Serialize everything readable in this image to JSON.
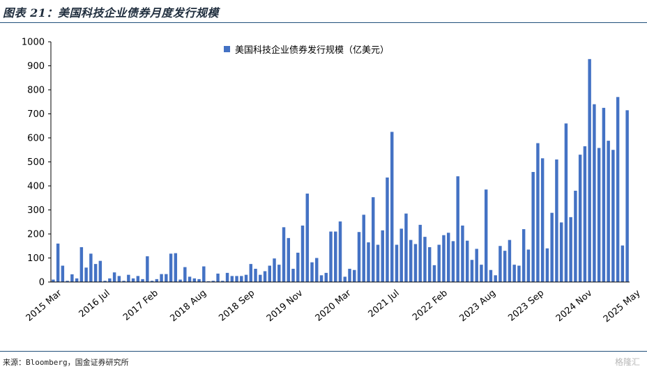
{
  "header": {
    "title": "图表 21：美国科技企业债券月度发行规模"
  },
  "footer": {
    "source": "来源：Bloomberg，国金证券研究所",
    "watermark": "格隆汇"
  },
  "colors": {
    "bar": "#4472c4",
    "rule": "#1f4e79",
    "axis": "#000000"
  },
  "chart_data": {
    "type": "bar",
    "series": [
      {
        "name": "美国科技企业债券发行规模（亿美元）",
        "values": [
          10,
          160,
          68,
          5,
          32,
          15,
          145,
          60,
          118,
          75,
          88,
          5,
          15,
          40,
          25,
          5,
          30,
          15,
          25,
          12,
          107,
          5,
          12,
          33,
          33,
          118,
          120,
          10,
          62,
          22,
          15,
          12,
          65,
          3,
          5,
          35,
          5,
          38,
          25,
          25,
          25,
          30,
          75,
          55,
          30,
          45,
          68,
          98,
          72,
          228,
          183,
          55,
          122,
          235,
          368,
          82,
          100,
          28,
          38,
          210,
          210,
          252,
          22,
          55,
          50,
          208,
          280,
          165,
          353,
          155,
          215,
          435,
          625,
          155,
          222,
          285,
          175,
          158,
          238,
          188,
          145,
          70,
          155,
          195,
          205,
          170,
          440,
          235,
          172,
          92,
          138,
          72,
          385,
          50,
          28,
          150,
          130,
          175,
          72,
          68,
          220,
          135,
          458,
          578,
          515,
          140,
          288,
          510,
          248,
          660,
          270,
          380,
          530,
          565,
          928,
          740,
          558,
          725,
          588,
          550,
          770,
          152,
          715
        ]
      }
    ],
    "x_tick_labels": [
      "2015 Mar",
      "2016 Jul",
      "2017 Feb",
      "2018 Aug",
      "2018 Sep",
      "2019 Nov",
      "2020 Mar",
      "2021 Jul",
      "2022 Feb",
      "2023 Aug",
      "2023 Sep",
      "2024 Nov",
      "2025 May"
    ],
    "y_ticks": [
      "0",
      "100",
      "200",
      "300",
      "400",
      "500",
      "600",
      "700",
      "800",
      "900",
      "1000"
    ],
    "ylim": [
      0,
      1000
    ],
    "legend_position": "top-center",
    "grid": false
  }
}
